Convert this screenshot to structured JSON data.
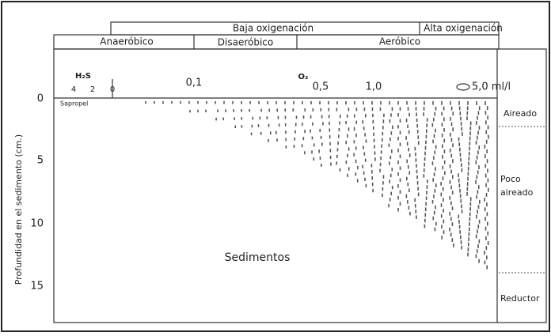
{
  "header": {
    "top": [
      "Baja oxigenación",
      "Alta oxigenación"
    ],
    "middle": [
      "Anaeróbico",
      "Disaeróbico",
      "Aeróbico"
    ]
  },
  "scale": {
    "h2s": "H₂S",
    "h2s_ticks": [
      "4",
      "2",
      "0"
    ],
    "o2": "O₂",
    "o2_ticks": [
      "0,1",
      "0,5",
      "1,0",
      "5,0 ml/l"
    ],
    "sapropel": "Sapropel"
  },
  "y_axis": {
    "title": "Profundidad en el sedimento (cm.)",
    "ticks": [
      "0",
      "5",
      "10",
      "15"
    ]
  },
  "zones": [
    "Aireado",
    "Poco aireado",
    "Reductor"
  ],
  "label": "Sedimentos"
}
